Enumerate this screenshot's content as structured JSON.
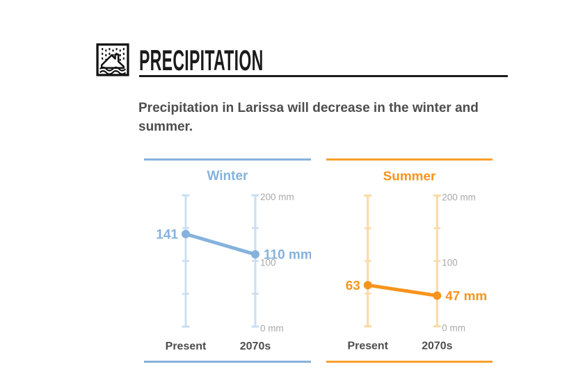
{
  "header": {
    "icon_name": "rain-flood-icon",
    "title": "PRECIPITATION"
  },
  "intro": {
    "text": "Precipitation in Larissa will decrease in the winter and summer."
  },
  "chart_data": [
    {
      "type": "slope",
      "title": "Winter",
      "categories": [
        "Present",
        "2070s"
      ],
      "values": [
        141,
        110
      ],
      "value_labels": [
        "141",
        "110 mm"
      ],
      "unit": "mm",
      "ylim": [
        0,
        200
      ],
      "ticks": [
        50,
        100,
        150
      ],
      "axis_scale_labels": [
        {
          "value": 200,
          "text": "200 mm"
        },
        {
          "value": 100,
          "text": "100"
        },
        {
          "value": 0,
          "text": "0 mm"
        }
      ],
      "grid": false,
      "colors": {
        "main": "#85b2dd",
        "axis": "#c9dff2",
        "border": "#85b2dd"
      }
    },
    {
      "type": "slope",
      "title": "Summer",
      "categories": [
        "Present",
        "2070s"
      ],
      "values": [
        63,
        47
      ],
      "value_labels": [
        "63",
        "47 mm"
      ],
      "unit": "mm",
      "ylim": [
        0,
        200
      ],
      "ticks": [
        50,
        100,
        150
      ],
      "axis_scale_labels": [
        {
          "value": 200,
          "text": "200 mm"
        },
        {
          "value": 100,
          "text": "100"
        },
        {
          "value": 0,
          "text": "0 mm"
        }
      ],
      "grid": false,
      "colors": {
        "main": "#f7941d",
        "axis": "#fbd9a6",
        "border": "#f7a029"
      }
    }
  ],
  "colors": {
    "category_label": "#4d4d4d",
    "axis_scale_label": "#a8a8a8",
    "heading": "#1b1b1b"
  }
}
